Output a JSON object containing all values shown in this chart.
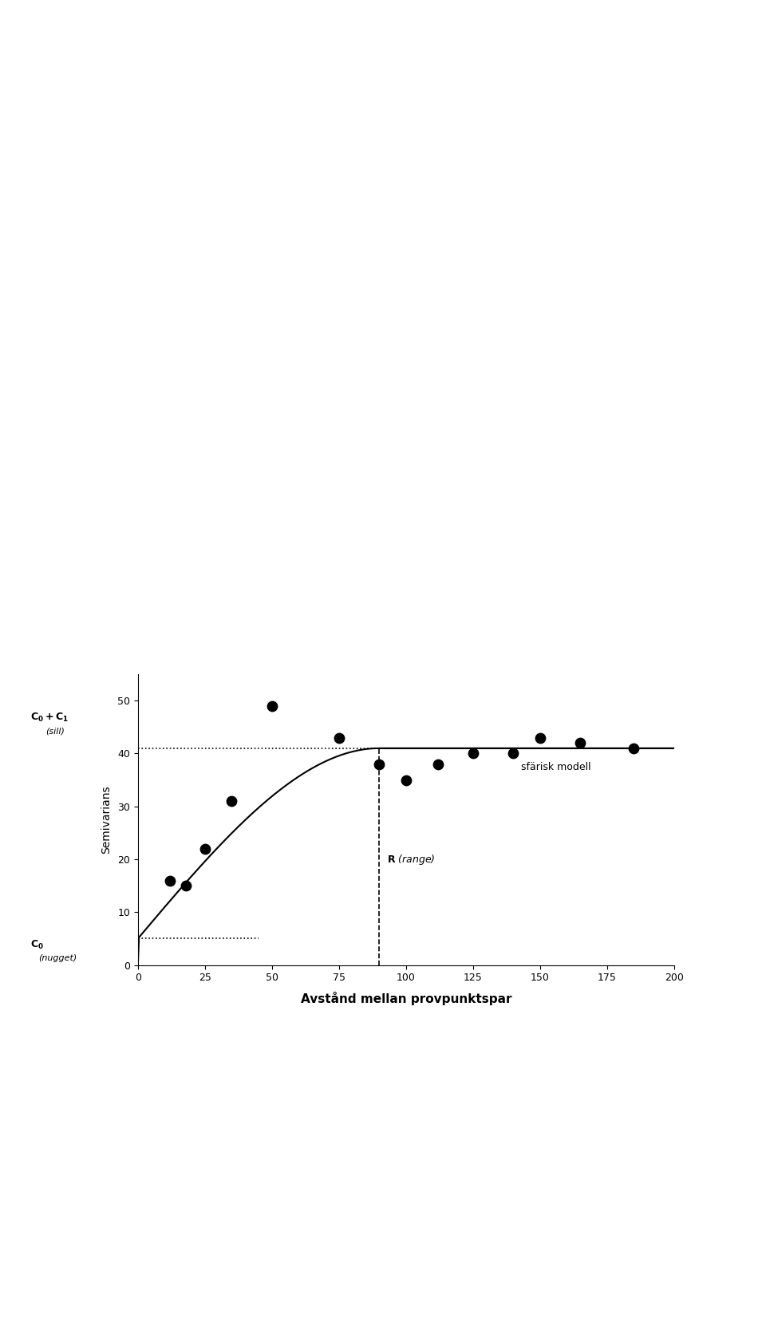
{
  "title": "",
  "xlabel": "Avstånd mellan provpunktspar",
  "ylabel": "Semivarians",
  "xlim": [
    0,
    200
  ],
  "ylim": [
    0.0,
    55.0
  ],
  "xticks": [
    0,
    25,
    50,
    75,
    100,
    125,
    150,
    175,
    200
  ],
  "yticks": [
    0.0,
    10.0,
    20.0,
    30.0,
    40.0,
    50.0
  ],
  "scatter_x": [
    12,
    18,
    25,
    35,
    50,
    75,
    90,
    100,
    112,
    125,
    140,
    150,
    165,
    185
  ],
  "scatter_y": [
    16,
    15,
    22,
    31,
    49,
    43,
    38,
    35,
    38,
    40,
    40,
    43,
    42,
    41
  ],
  "nugget_value": 5.0,
  "sill_value": 41.0,
  "range_value": 90,
  "sill_label": "C₀+C₁",
  "sill_sublabel": "(sill)",
  "nugget_label": "C₀",
  "nugget_sublabel": "(nugget)",
  "range_label": "R",
  "range_sublabel": "(range)",
  "model_label": "sfärisk modell",
  "background_color": "#ffffff",
  "scatter_color": "#000000",
  "line_color": "#000000",
  "sill_line_color": "#000000",
  "nugget_line_color": "#000000",
  "range_line_color": "#000000",
  "dashed_line_style": "--",
  "dotted_line_style": ":"
}
